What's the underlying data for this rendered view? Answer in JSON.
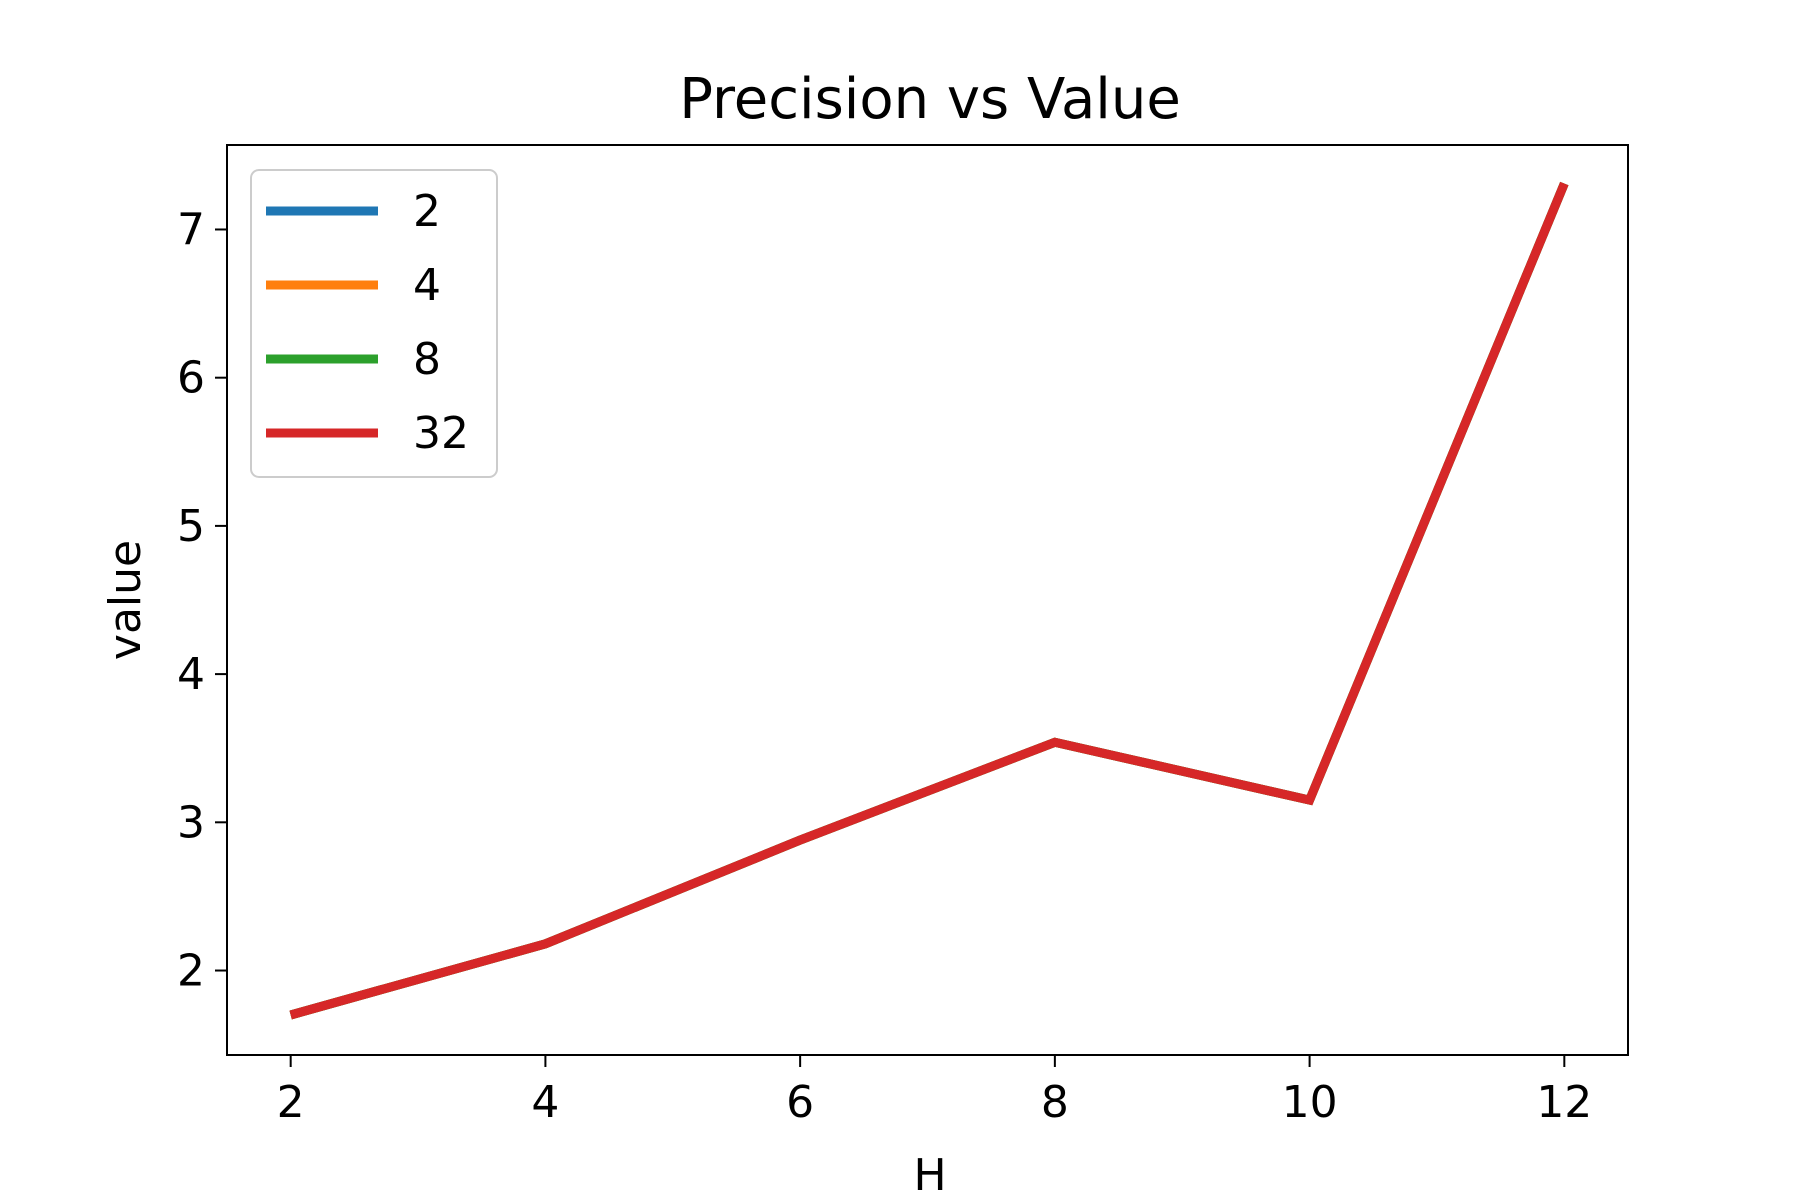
{
  "chart_data": {
    "type": "line",
    "title": "Precision vs Value",
    "xlabel": "H",
    "ylabel": "value",
    "x": [
      2,
      4,
      6,
      8,
      10,
      12
    ],
    "xlim": [
      1.5,
      12.5
    ],
    "ylim": [
      1.43,
      7.57
    ],
    "xticks": [
      "2",
      "4",
      "6",
      "8",
      "10",
      "12"
    ],
    "yticks": [
      "2",
      "3",
      "4",
      "5",
      "6",
      "7"
    ],
    "grid": false,
    "legend_position": "top-left",
    "series": [
      {
        "name": "2",
        "color": "#1f77b4",
        "values": [
          1.7,
          2.18,
          2.88,
          3.54,
          3.15,
          7.31
        ]
      },
      {
        "name": "4",
        "color": "#ff7f0e",
        "values": [
          1.7,
          2.18,
          2.88,
          3.54,
          3.15,
          7.31
        ]
      },
      {
        "name": "8",
        "color": "#2ca02c",
        "values": [
          1.7,
          2.18,
          2.88,
          3.54,
          3.15,
          7.31
        ]
      },
      {
        "name": "32",
        "color": "#d62728",
        "values": [
          1.7,
          2.18,
          2.88,
          3.54,
          3.15,
          7.31
        ]
      }
    ]
  }
}
